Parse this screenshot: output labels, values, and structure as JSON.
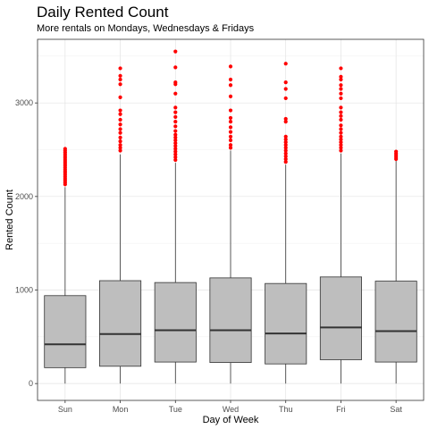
{
  "chart_data": {
    "type": "boxplot",
    "title": "Daily Rented Count",
    "subtitle": "More rentals on Mondays, Wednesdays & Fridays",
    "xlabel": "Day of Week",
    "ylabel": "Rented Count",
    "categories": [
      "Sun",
      "Mon",
      "Tue",
      "Wed",
      "Thu",
      "Fri",
      "Sat"
    ],
    "ylim": [
      -180,
      3680
    ],
    "yticks": [
      0,
      1000,
      2000,
      3000
    ],
    "grid": true,
    "box_fill": "#bebebe",
    "outlier_color": "#ff0000",
    "boxes": [
      {
        "min": 0,
        "q1": 170,
        "median": 420,
        "q3": 940,
        "max": 2100,
        "outliers": [
          2130,
          2150,
          2170,
          2190,
          2210,
          2230,
          2250,
          2270,
          2290,
          2310,
          2330,
          2350,
          2370,
          2390,
          2410,
          2430,
          2450,
          2470,
          2490,
          2510
        ]
      },
      {
        "min": 0,
        "q1": 185,
        "median": 530,
        "q3": 1100,
        "max": 2450,
        "outliers": [
          2490,
          2520,
          2550,
          2590,
          2630,
          2680,
          2720,
          2770,
          2820,
          2880,
          2920,
          3060,
          3200,
          3250,
          3290,
          3370
        ]
      },
      {
        "min": 0,
        "q1": 230,
        "median": 570,
        "q3": 1080,
        "max": 2360,
        "outliers": [
          2390,
          2420,
          2450,
          2480,
          2510,
          2540,
          2570,
          2600,
          2630,
          2660,
          2700,
          2750,
          2800,
          2850,
          2900,
          2950,
          3100,
          3200,
          3220,
          3380,
          3550
        ]
      },
      {
        "min": 0,
        "q1": 225,
        "median": 570,
        "q3": 1130,
        "max": 2490,
        "outliers": [
          2520,
          2550,
          2600,
          2640,
          2690,
          2740,
          2800,
          2840,
          2920,
          3070,
          3190,
          3250,
          3390
        ]
      },
      {
        "min": 0,
        "q1": 210,
        "median": 535,
        "q3": 1070,
        "max": 2340,
        "outliers": [
          2370,
          2400,
          2430,
          2460,
          2490,
          2520,
          2550,
          2580,
          2610,
          2640,
          2800,
          2830,
          3050,
          3150,
          3220,
          3420
        ]
      },
      {
        "min": 0,
        "q1": 255,
        "median": 600,
        "q3": 1140,
        "max": 2460,
        "outliers": [
          2490,
          2520,
          2550,
          2580,
          2610,
          2640,
          2680,
          2720,
          2760,
          2820,
          2860,
          2900,
          2950,
          3050,
          3100,
          3150,
          3190,
          3250,
          3280,
          3370
        ]
      },
      {
        "min": 0,
        "q1": 230,
        "median": 560,
        "q3": 1095,
        "max": 2380,
        "outliers": [
          2400,
          2420,
          2440,
          2460,
          2480
        ]
      }
    ]
  }
}
